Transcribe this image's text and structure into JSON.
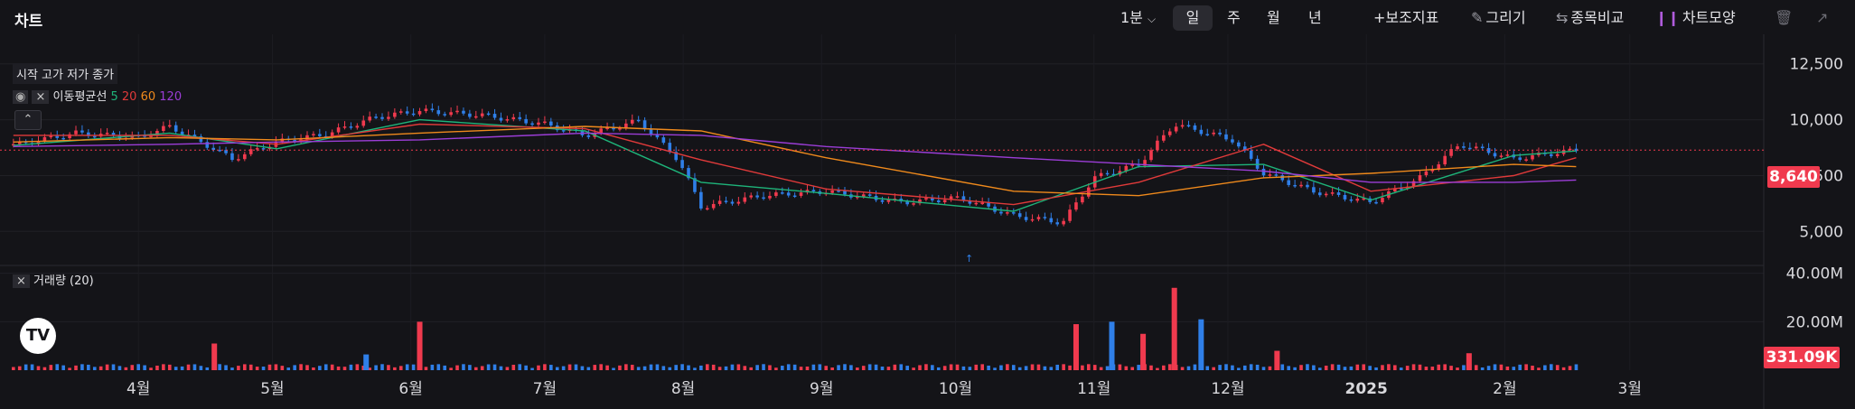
{
  "app": {
    "title": "차트",
    "interval": "1분",
    "periods": [
      "일",
      "주",
      "월",
      "년"
    ],
    "selected_period": "일",
    "tools": {
      "indicator": "+보조지표",
      "draw": "그리기",
      "compare": "종목비교",
      "shape": "차트모양"
    },
    "icons": [
      "chevron-down-icon",
      "plus-icon",
      "pencil-icon",
      "compare-icon",
      "candle-icon",
      "trash-icon",
      "expand-icon"
    ]
  },
  "legend": {
    "ohlc_label": "시작 고가 저가 종가",
    "ma_label": "이동평균선",
    "ma_periods": [
      "5",
      "20",
      "60",
      "120"
    ],
    "volume_label": "거래량 (20)"
  },
  "colors": {
    "up": "#f03a4e",
    "down": "#2f7fe8",
    "ma5": "#1eb47a",
    "ma20": "#e03a3a",
    "ma60": "#f08a1c",
    "ma120": "#9b3dd6",
    "background": "#141418"
  },
  "chart_data": {
    "type": "candlestick",
    "price_axis": {
      "ticks": [
        5000,
        7500,
        10000,
        12500
      ],
      "labels": [
        "5,000",
        "7,500",
        "10,000",
        "12,500"
      ],
      "range": [
        3800,
        13500
      ]
    },
    "volume_axis": {
      "ticks": [
        20000000,
        40000000
      ],
      "labels": [
        "20.00M",
        "40.00M"
      ],
      "range": [
        0,
        41000000
      ]
    },
    "x_labels": [
      {
        "x": "2024-04",
        "label": "4월"
      },
      {
        "x": "2024-05",
        "label": "5월"
      },
      {
        "x": "2024-06",
        "label": "6월"
      },
      {
        "x": "2024-07",
        "label": "7월"
      },
      {
        "x": "2024-08",
        "label": "8월"
      },
      {
        "x": "2024-09",
        "label": "9월"
      },
      {
        "x": "2024-10",
        "label": "10월"
      },
      {
        "x": "2024-11",
        "label": "11월"
      },
      {
        "x": "2024-12",
        "label": "12월"
      },
      {
        "x": "2025-01",
        "label": "2025"
      },
      {
        "x": "2025-02",
        "label": "2월"
      },
      {
        "x": "2025-03",
        "label": "3월"
      }
    ],
    "last_price": 8640,
    "last_price_label": "8,640",
    "last_volume_label": "331.09K",
    "legend_placement": "top-left",
    "grid": true,
    "close_series": [
      {
        "x": "2024-03-04",
        "y": 8850
      },
      {
        "x": "2024-03-18",
        "y": 9400
      },
      {
        "x": "2024-04-01",
        "y": 9200
      },
      {
        "x": "2024-04-08",
        "y": 9700
      },
      {
        "x": "2024-04-16",
        "y": 8900
      },
      {
        "x": "2024-04-22",
        "y": 8250
      },
      {
        "x": "2024-05-02",
        "y": 9000
      },
      {
        "x": "2024-05-13",
        "y": 9350
      },
      {
        "x": "2024-05-24",
        "y": 10100
      },
      {
        "x": "2024-06-03",
        "y": 10400
      },
      {
        "x": "2024-06-17",
        "y": 10200
      },
      {
        "x": "2024-07-01",
        "y": 9800
      },
      {
        "x": "2024-07-10",
        "y": 9300
      },
      {
        "x": "2024-07-22",
        "y": 9950
      },
      {
        "x": "2024-07-31",
        "y": 8200
      },
      {
        "x": "2024-08-05",
        "y": 6100
      },
      {
        "x": "2024-08-19",
        "y": 6600
      },
      {
        "x": "2024-09-02",
        "y": 6800
      },
      {
        "x": "2024-09-19",
        "y": 6300
      },
      {
        "x": "2024-10-02",
        "y": 6500
      },
      {
        "x": "2024-10-14",
        "y": 5700
      },
      {
        "x": "2024-10-25",
        "y": 5400
      },
      {
        "x": "2024-11-01",
        "y": 7400
      },
      {
        "x": "2024-11-11",
        "y": 8000
      },
      {
        "x": "2024-11-19",
        "y": 9800
      },
      {
        "x": "2024-12-02",
        "y": 9100
      },
      {
        "x": "2024-12-09",
        "y": 7600
      },
      {
        "x": "2024-12-20",
        "y": 6800
      },
      {
        "x": "2025-01-02",
        "y": 6300
      },
      {
        "x": "2025-01-13",
        "y": 7400
      },
      {
        "x": "2025-01-22",
        "y": 8900
      },
      {
        "x": "2025-02-03",
        "y": 8250
      },
      {
        "x": "2025-02-17",
        "y": 8640
      }
    ],
    "moving_averages": [
      {
        "name": "5",
        "color": "#1eb47a",
        "points": [
          [
            "2024-03-04",
            8850
          ],
          [
            "2024-04-08",
            9400
          ],
          [
            "2024-05-02",
            8700
          ],
          [
            "2024-06-03",
            10000
          ],
          [
            "2024-07-10",
            9500
          ],
          [
            "2024-08-05",
            7200
          ],
          [
            "2024-09-02",
            6700
          ],
          [
            "2024-10-14",
            5900
          ],
          [
            "2024-11-11",
            7900
          ],
          [
            "2024-12-09",
            8000
          ],
          [
            "2025-01-02",
            6400
          ],
          [
            "2025-02-03",
            8400
          ],
          [
            "2025-02-17",
            8600
          ]
        ]
      },
      {
        "name": "20",
        "color": "#e03a3a",
        "points": [
          [
            "2024-03-04",
            9300
          ],
          [
            "2024-04-08",
            9300
          ],
          [
            "2024-05-02",
            8900
          ],
          [
            "2024-06-03",
            9800
          ],
          [
            "2024-07-10",
            9600
          ],
          [
            "2024-08-05",
            8200
          ],
          [
            "2024-09-02",
            6900
          ],
          [
            "2024-10-14",
            6200
          ],
          [
            "2024-11-11",
            7200
          ],
          [
            "2024-12-09",
            8900
          ],
          [
            "2025-01-02",
            6800
          ],
          [
            "2025-02-03",
            7500
          ],
          [
            "2025-02-17",
            8300
          ]
        ]
      },
      {
        "name": "60",
        "color": "#f08a1c",
        "points": [
          [
            "2024-03-04",
            9000
          ],
          [
            "2024-04-08",
            9200
          ],
          [
            "2024-05-02",
            9100
          ],
          [
            "2024-06-03",
            9400
          ],
          [
            "2024-07-10",
            9700
          ],
          [
            "2024-08-05",
            9500
          ],
          [
            "2024-09-02",
            8300
          ],
          [
            "2024-10-14",
            6800
          ],
          [
            "2024-11-11",
            6600
          ],
          [
            "2024-12-09",
            7400
          ],
          [
            "2025-01-02",
            7600
          ],
          [
            "2025-02-03",
            8000
          ],
          [
            "2025-02-17",
            7900
          ]
        ]
      },
      {
        "name": "120",
        "color": "#9b3dd6",
        "points": [
          [
            "2024-03-04",
            8800
          ],
          [
            "2024-04-08",
            8900
          ],
          [
            "2024-05-02",
            9000
          ],
          [
            "2024-06-03",
            9100
          ],
          [
            "2024-07-10",
            9400
          ],
          [
            "2024-08-05",
            9300
          ],
          [
            "2024-09-02",
            8800
          ],
          [
            "2024-10-14",
            8300
          ],
          [
            "2024-11-11",
            8000
          ],
          [
            "2024-12-09",
            7700
          ],
          [
            "2025-01-02",
            7200
          ],
          [
            "2025-02-03",
            7200
          ],
          [
            "2025-02-17",
            7300
          ]
        ]
      }
    ],
    "notable_volumes": [
      {
        "x": "2024-04-18",
        "y": 11000000
      },
      {
        "x": "2024-05-22",
        "y": 6500000
      },
      {
        "x": "2024-06-03",
        "y": 20000000
      },
      {
        "x": "2024-10-28",
        "y": 19000000
      },
      {
        "x": "2024-11-05",
        "y": 20000000
      },
      {
        "x": "2024-11-12",
        "y": 15000000
      },
      {
        "x": "2024-11-19",
        "y": 34000000
      },
      {
        "x": "2024-11-25",
        "y": 21000000
      },
      {
        "x": "2024-12-12",
        "y": 8000000
      },
      {
        "x": "2025-01-24",
        "y": 7000000
      }
    ]
  }
}
